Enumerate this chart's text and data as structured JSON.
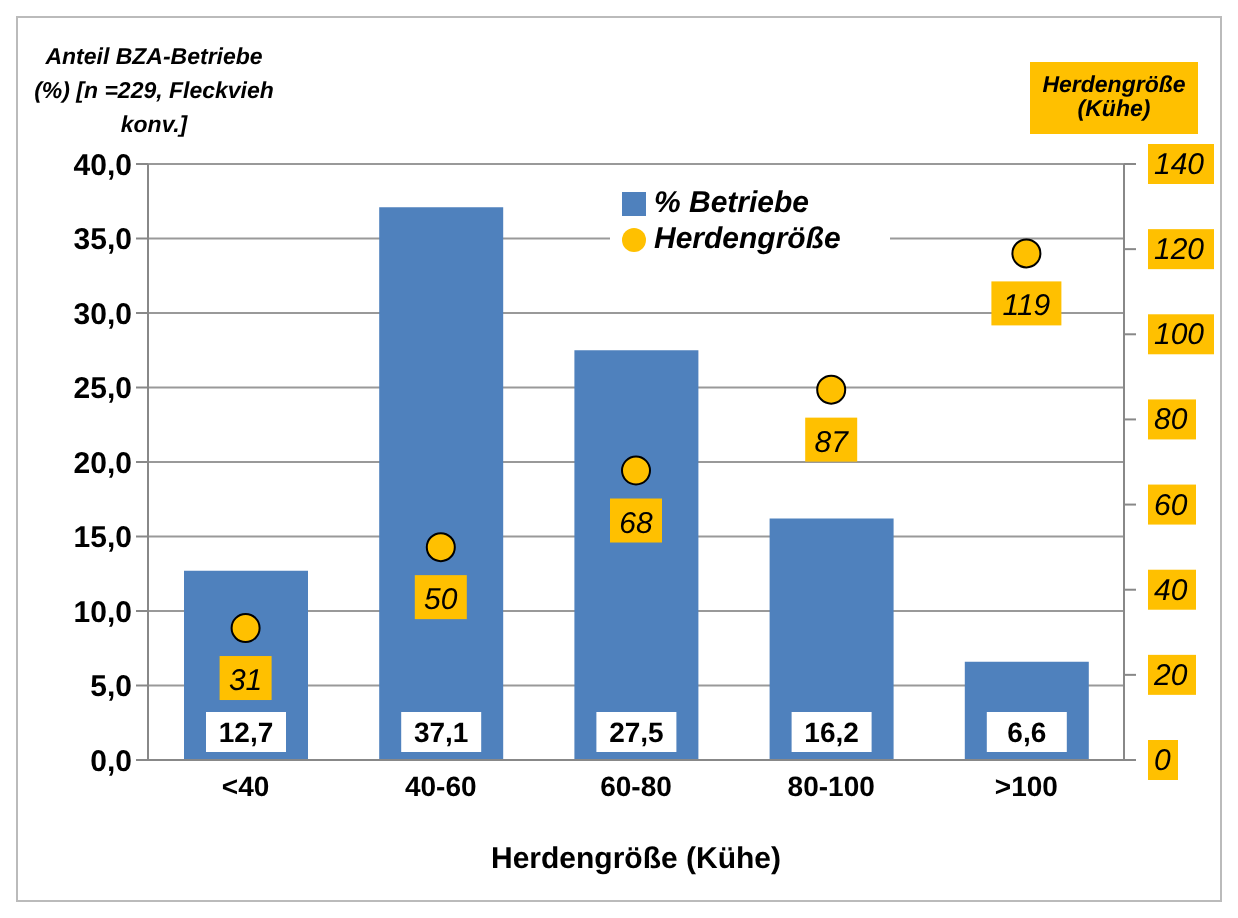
{
  "chart_data": {
    "type": "bar",
    "ylabel": "Anteil BZA-Betriebe (%)   [n =229, Fleckvieh  konv.]",
    "xlabel": "Herdengröße (Kühe)",
    "y2label": "Herdengröße (Kühe)",
    "categories": [
      "<40",
      "40-60",
      "60-80",
      "80-100",
      ">100"
    ],
    "series": [
      {
        "name": "% Betriebe",
        "color": "#4f81bd",
        "values": [
          12.7,
          37.1,
          27.5,
          16.2,
          6.6
        ],
        "value_labels": [
          "12,7",
          "37,1",
          "27,5",
          "16,2",
          "6,6"
        ]
      },
      {
        "name": "Herdengröße",
        "type": "scatter",
        "axis": "y2",
        "color": "#ffc000",
        "marker": "circle",
        "values": [
          31,
          50,
          68,
          87,
          119
        ],
        "value_labels": [
          "31",
          "50",
          "68",
          "87",
          "119"
        ]
      }
    ],
    "ylim": [
      0,
      40
    ],
    "yticks": [
      {
        "value": 0,
        "label": "0,0"
      },
      {
        "value": 5,
        "label": "5,0"
      },
      {
        "value": 10,
        "label": "10,0"
      },
      {
        "value": 15,
        "label": "15,0"
      },
      {
        "value": 20,
        "label": "20,0"
      },
      {
        "value": 25,
        "label": "25,0"
      },
      {
        "value": 30,
        "label": "30,0"
      },
      {
        "value": 35,
        "label": "35,0"
      },
      {
        "value": 40,
        "label": "40,0"
      }
    ],
    "y2lim": [
      0,
      140
    ],
    "y2ticks": [
      0,
      20,
      40,
      60,
      80,
      100,
      120,
      140
    ],
    "grid": "y",
    "legend": "top"
  }
}
